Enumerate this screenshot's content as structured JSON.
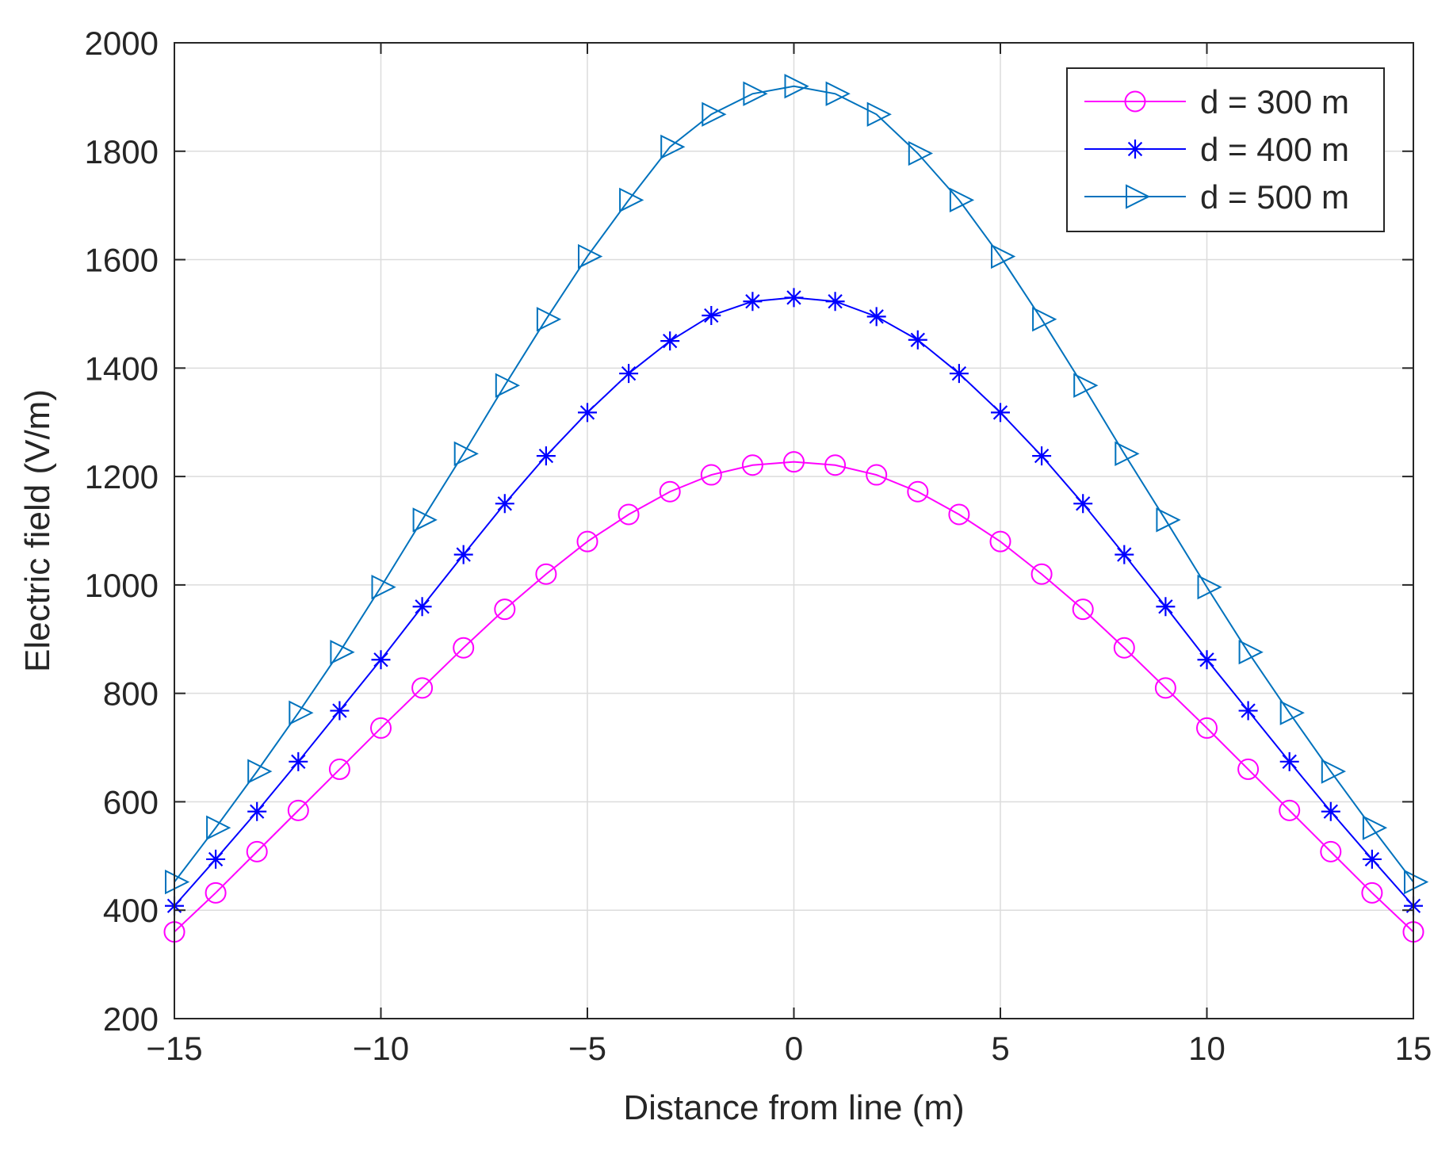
{
  "chart_data": {
    "type": "line",
    "title": "",
    "xlabel": "Distance from line (m)",
    "ylabel": "Electric field (V/m)",
    "xlim": [
      -15,
      15
    ],
    "ylim": [
      200,
      2000
    ],
    "grid": true,
    "legend_position": "top-right",
    "x_ticks": [
      -15,
      -10,
      -5,
      0,
      5,
      10,
      15
    ],
    "x_tick_labels": [
      "−15",
      "−10",
      "−5",
      "0",
      "5",
      "10",
      "15"
    ],
    "y_ticks": [
      200,
      400,
      600,
      800,
      1000,
      1200,
      1400,
      1600,
      1800,
      2000
    ],
    "y_tick_labels": [
      "200",
      "400",
      "600",
      "800",
      "1000",
      "1200",
      "1400",
      "1600",
      "1800",
      "2000"
    ],
    "x": [
      -15,
      -14,
      -13,
      -12,
      -11,
      -10,
      -9,
      -8,
      -7,
      -6,
      -5,
      -4,
      -3,
      -2,
      -1,
      0,
      1,
      2,
      3,
      4,
      5,
      6,
      7,
      8,
      9,
      10,
      11,
      12,
      13,
      14,
      15
    ],
    "series": [
      {
        "name": "d = 300 m",
        "color": "#ff00ff",
        "marker": "circle",
        "values": [
          360,
          432,
          508,
          584,
          660,
          736,
          810,
          884,
          955,
          1020,
          1080,
          1130,
          1172,
          1203,
          1221,
          1227,
          1221,
          1203,
          1172,
          1130,
          1080,
          1020,
          955,
          884,
          810,
          736,
          660,
          584,
          508,
          432,
          360
        ]
      },
      {
        "name": "d = 400 m",
        "color": "#0000ff",
        "marker": "asterisk",
        "values": [
          408,
          494,
          582,
          674,
          768,
          862,
          960,
          1056,
          1150,
          1238,
          1318,
          1390,
          1450,
          1497,
          1523,
          1530,
          1523,
          1495,
          1452,
          1390,
          1318,
          1238,
          1150,
          1056,
          960,
          862,
          768,
          674,
          582,
          494,
          408
        ]
      },
      {
        "name": "d = 500 m",
        "color": "#0072bd",
        "marker": "triangle-right",
        "values": [
          452,
          552,
          656,
          764,
          876,
          996,
          1120,
          1242,
          1368,
          1490,
          1606,
          1710,
          1808,
          1868,
          1906,
          1920,
          1906,
          1868,
          1796,
          1710,
          1606,
          1490,
          1368,
          1242,
          1120,
          996,
          876,
          764,
          656,
          552,
          452
        ]
      }
    ]
  }
}
